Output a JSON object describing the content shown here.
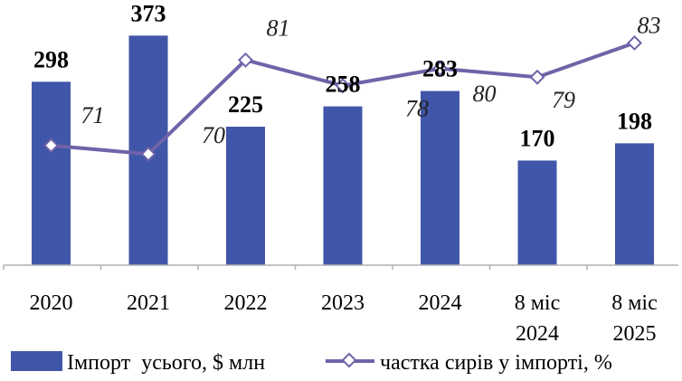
{
  "chart_data": {
    "type": "bar",
    "categories": [
      [
        "2020"
      ],
      [
        "2021"
      ],
      [
        "2022"
      ],
      [
        "2023"
      ],
      [
        "2024"
      ],
      [
        "8 міс",
        "2024"
      ],
      [
        "8 міс",
        "2025"
      ]
    ],
    "series": [
      {
        "name": "Імпорт  усього, $ млн",
        "type": "bar",
        "values": [
          298,
          373,
          225,
          258,
          283,
          170,
          198
        ],
        "labels": [
          "298",
          "373",
          "225",
          "258",
          "283",
          "170",
          "198"
        ],
        "color": "#4056a8"
      },
      {
        "name": "частка сирів у імпорті, %",
        "type": "line",
        "values": [
          71,
          70,
          81,
          78,
          80,
          79,
          83
        ],
        "labels": [
          "71",
          "70",
          "81",
          "78",
          "80",
          "79",
          "83"
        ],
        "color": "#7063a9"
      }
    ],
    "bar_axis_range": [
      0,
      375
    ],
    "line_axis_range": [
      57,
      84
    ],
    "grid": false,
    "legend_position": "bottom"
  }
}
